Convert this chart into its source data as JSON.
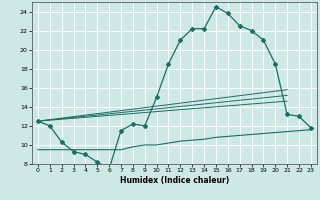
{
  "xlabel": "Humidex (Indice chaleur)",
  "background_color": "#cde8e5",
  "grid_color": "#ffffff",
  "line_color": "#1a6e64",
  "xlim": [
    -0.5,
    23.5
  ],
  "ylim": [
    8,
    25
  ],
  "yticks": [
    8,
    10,
    12,
    14,
    16,
    18,
    20,
    22,
    24
  ],
  "xticks": [
    0,
    1,
    2,
    3,
    4,
    5,
    6,
    7,
    8,
    9,
    10,
    11,
    12,
    13,
    14,
    15,
    16,
    17,
    18,
    19,
    20,
    21,
    22,
    23
  ],
  "curve1_x": [
    0,
    1,
    2,
    3,
    4,
    5,
    6,
    7,
    8,
    9,
    10,
    11,
    12,
    13,
    14,
    15,
    16,
    17,
    18,
    19,
    20,
    21,
    22,
    23
  ],
  "curve1_y": [
    12.5,
    12.0,
    10.3,
    9.3,
    9.0,
    8.2,
    7.5,
    11.5,
    12.2,
    12.0,
    15.0,
    18.5,
    21.0,
    22.2,
    22.2,
    24.5,
    23.8,
    22.5,
    22.0,
    21.0,
    18.5,
    13.2,
    13.0,
    11.8
  ],
  "curve2_x": [
    0,
    1,
    2,
    3,
    4,
    5,
    6,
    7,
    8,
    9,
    10,
    11,
    12,
    13,
    14,
    15,
    16,
    17,
    18,
    19,
    20,
    21,
    22,
    23
  ],
  "curve2_y": [
    9.5,
    9.5,
    9.5,
    9.5,
    9.5,
    9.5,
    9.5,
    9.5,
    9.8,
    10.0,
    10.0,
    10.2,
    10.4,
    10.5,
    10.6,
    10.8,
    10.9,
    11.0,
    11.1,
    11.2,
    11.3,
    11.4,
    11.5,
    11.6
  ],
  "line1_x": [
    0,
    21
  ],
  "line1_y": [
    12.5,
    15.8
  ],
  "line2_x": [
    0,
    21
  ],
  "line2_y": [
    12.5,
    15.2
  ],
  "line3_x": [
    0,
    21
  ],
  "line3_y": [
    12.5,
    14.6
  ]
}
